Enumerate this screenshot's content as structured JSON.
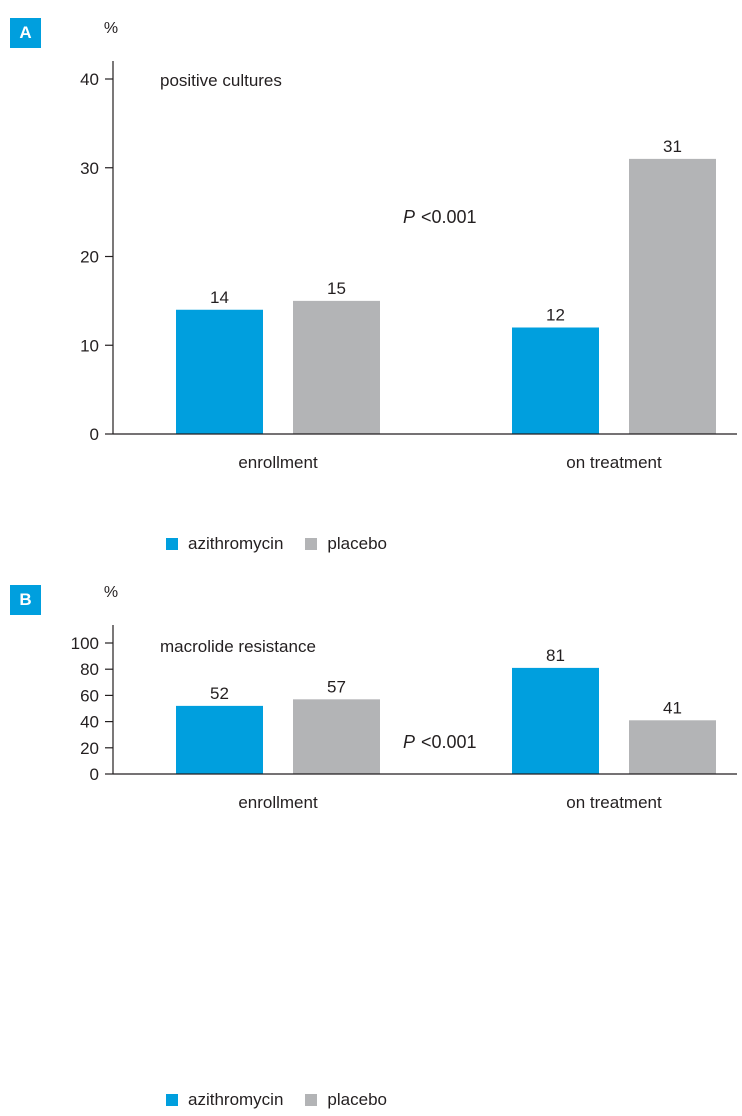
{
  "colors": {
    "azithromycin": "#009fde",
    "placebo": "#b3b4b6",
    "axis": "#231f20",
    "badge": "#009fde"
  },
  "chart_data": [
    {
      "type": "bar",
      "panel_label": "A",
      "title": "positive cultures",
      "ylabel": "%",
      "ylim": [
        0,
        40
      ],
      "yticks": [
        0,
        10,
        20,
        30,
        40
      ],
      "categories": [
        "enrollment",
        "on treatment"
      ],
      "series": [
        {
          "name": "azithromycin",
          "values": [
            14,
            12
          ]
        },
        {
          "name": "placebo",
          "values": [
            15,
            31
          ]
        }
      ],
      "data_labels": [
        [
          "14",
          "12"
        ],
        [
          "15",
          "31"
        ]
      ],
      "annotation": {
        "p_symbol": "P",
        "p_value": "<0.001"
      },
      "legend_position": "bottom",
      "grid": false
    },
    {
      "type": "bar",
      "panel_label": "B",
      "title": "macrolide resistance",
      "ylabel": "%",
      "ylim": [
        0,
        100
      ],
      "yticks": [
        0,
        20,
        40,
        60,
        80,
        100
      ],
      "categories": [
        "enrollment",
        "on treatment"
      ],
      "series": [
        {
          "name": "azithromycin",
          "values": [
            52,
            81
          ]
        },
        {
          "name": "placebo",
          "values": [
            57,
            41
          ]
        }
      ],
      "data_labels": [
        [
          "52",
          "81"
        ],
        [
          "57",
          "41"
        ]
      ],
      "annotation": {
        "p_symbol": "P",
        "p_value": "<0.001"
      },
      "legend_position": "bottom",
      "grid": false
    }
  ]
}
